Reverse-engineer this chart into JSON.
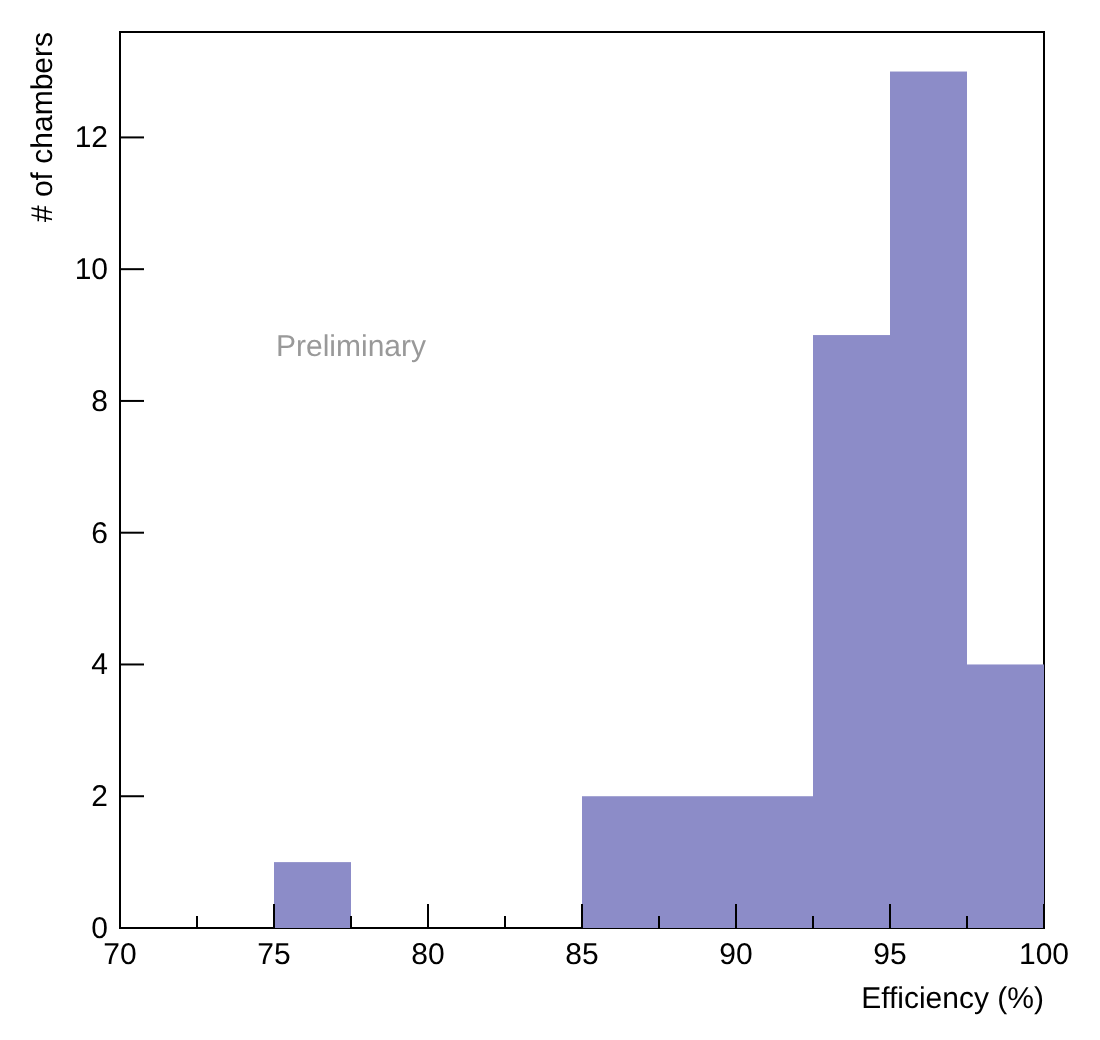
{
  "chart_data": {
    "type": "histogram",
    "xlabel": "Efficiency (%)",
    "ylabel": "# of chambers",
    "bins": [
      70,
      72.5,
      75,
      77.5,
      80,
      82.5,
      85,
      87.5,
      90,
      92.5,
      95,
      97.5,
      100
    ],
    "values": [
      0,
      0,
      1,
      0,
      0,
      0,
      2,
      2,
      2,
      9,
      13,
      4
    ],
    "color": "#8c8cc8",
    "xlim": [
      70,
      100
    ],
    "xticks": [
      70,
      {
        "value": 72.5,
        "label": null
      },
      75,
      {
        "value": 77.5,
        "label": null
      },
      80,
      {
        "value": 82.5,
        "label": null
      },
      85,
      {
        "value": 87.5,
        "label": null
      },
      90,
      {
        "value": 92.5,
        "label": null
      },
      95,
      {
        "value": 97.5,
        "label": null
      },
      100
    ],
    "ylim": [
      0,
      13.6
    ],
    "yticks": [
      0,
      2,
      4,
      6,
      8,
      10,
      12
    ],
    "annotations": [
      "Preliminary"
    ]
  }
}
